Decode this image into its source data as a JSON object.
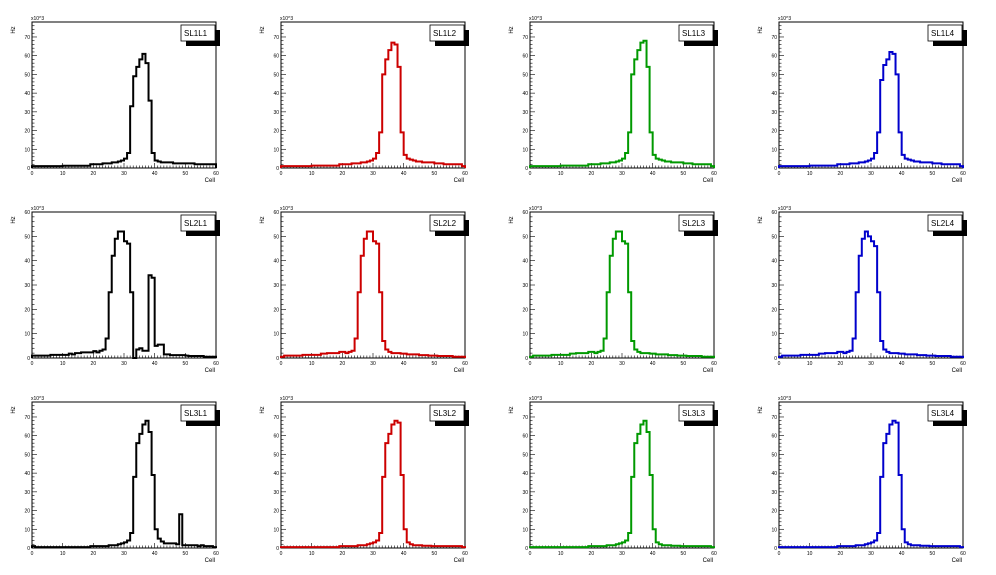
{
  "chart_data": [
    {
      "type": "histogram",
      "title": "SL1L1",
      "color": "#000000",
      "xlabel": "Cell",
      "ylabel": "Hz",
      "yscale": "x10^3",
      "xlim": [
        0,
        60
      ],
      "ylim": [
        0,
        78
      ],
      "yticks": [
        0,
        10,
        20,
        30,
        40,
        50,
        60,
        70
      ],
      "xticks": [
        0,
        10,
        20,
        30,
        40,
        50,
        60
      ],
      "values": [
        1,
        1,
        1,
        1,
        1,
        1,
        1,
        1,
        1,
        1,
        1.2,
        1.2,
        1.2,
        1.2,
        1.2,
        1.2,
        1.2,
        1.2,
        1.2,
        2,
        2,
        2,
        2,
        2.5,
        2.5,
        2.5,
        3,
        3,
        3.5,
        4,
        5,
        8,
        33,
        49,
        54,
        58,
        61,
        56,
        36,
        8,
        4,
        3.5,
        3,
        3,
        3,
        3,
        2.5,
        2.5,
        2.5,
        2.5,
        2.5,
        2.5,
        2.5,
        2,
        2,
        2,
        2,
        2,
        2,
        2
      ]
    },
    {
      "type": "histogram",
      "title": "SL1L2",
      "color": "#cc0000",
      "xlabel": "Cell",
      "ylabel": "Hz",
      "yscale": "x10^3",
      "xlim": [
        0,
        60
      ],
      "ylim": [
        0,
        78
      ],
      "yticks": [
        0,
        10,
        20,
        30,
        40,
        50,
        60,
        70
      ],
      "xticks": [
        0,
        10,
        20,
        30,
        40,
        50,
        60
      ],
      "values": [
        1,
        1,
        1,
        1,
        1,
        1,
        1,
        1,
        1,
        1,
        1.3,
        1.3,
        1.3,
        1.3,
        1.3,
        1.3,
        1.3,
        1.3,
        1.3,
        2,
        2,
        2,
        2,
        2.5,
        2.5,
        2.5,
        3,
        3,
        3.5,
        4,
        5,
        8,
        19,
        50,
        58,
        63,
        67,
        66,
        54,
        19,
        7,
        5,
        4.5,
        4,
        3.5,
        3.5,
        3,
        3,
        3,
        3,
        2.5,
        2.5,
        2.5,
        2,
        2,
        2,
        2,
        2,
        2,
        1
      ]
    },
    {
      "type": "histogram",
      "title": "SL1L3",
      "color": "#009900",
      "xlabel": "Cell",
      "ylabel": "Hz",
      "yscale": "x10^3",
      "xlim": [
        0,
        60
      ],
      "ylim": [
        0,
        78
      ],
      "yticks": [
        0,
        10,
        20,
        30,
        40,
        50,
        60,
        70
      ],
      "xticks": [
        0,
        10,
        20,
        30,
        40,
        50,
        60
      ],
      "values": [
        1,
        1,
        1,
        1,
        1,
        1,
        1,
        1,
        1,
        1,
        1.3,
        1.3,
        1.3,
        1.3,
        1.3,
        1.3,
        1.3,
        1.3,
        1.3,
        2,
        2,
        2,
        2,
        2.5,
        2.5,
        2.5,
        3,
        3,
        3.5,
        4,
        5,
        8,
        19,
        50,
        58,
        63,
        67,
        68,
        54,
        19,
        7,
        5,
        4.5,
        4,
        3.5,
        3.5,
        3,
        3,
        3,
        3,
        2.5,
        2.5,
        2.5,
        2,
        2,
        2,
        2,
        2,
        2,
        1
      ]
    },
    {
      "type": "histogram",
      "title": "SL1L4",
      "color": "#0000cc",
      "xlabel": "Cell",
      "ylabel": "Hz",
      "yscale": "x10^3",
      "xlim": [
        0,
        60
      ],
      "ylim": [
        0,
        78
      ],
      "yticks": [
        0,
        10,
        20,
        30,
        40,
        50,
        60,
        70
      ],
      "xticks": [
        0,
        10,
        20,
        30,
        40,
        50,
        60
      ],
      "values": [
        1,
        1,
        1,
        1,
        1,
        1,
        1,
        1,
        1,
        1,
        1.3,
        1.3,
        1.3,
        1.3,
        1.3,
        1.3,
        1.3,
        1.3,
        1.3,
        2,
        2,
        2,
        2,
        2.5,
        2.5,
        2.5,
        3,
        3,
        3.5,
        4,
        5,
        8,
        19,
        47,
        55,
        58,
        62,
        61,
        50,
        19,
        7,
        5,
        4.5,
        4,
        3.5,
        3.5,
        3,
        3,
        3,
        3,
        2.5,
        2.5,
        2.5,
        2,
        2,
        2,
        2,
        2,
        2,
        1
      ]
    },
    {
      "type": "histogram",
      "title": "SL2L1",
      "color": "#000000",
      "xlabel": "Cell",
      "ylabel": "Hz",
      "yscale": "x10^3",
      "xlim": [
        0,
        60
      ],
      "ylim": [
        0,
        60
      ],
      "yticks": [
        0,
        10,
        20,
        30,
        40,
        50,
        60
      ],
      "xticks": [
        0,
        10,
        20,
        30,
        40,
        50,
        60
      ],
      "values": [
        1,
        1,
        1,
        1,
        1,
        1,
        1.3,
        1.3,
        1.3,
        1.3,
        1.3,
        1.3,
        1.8,
        1.5,
        2,
        2,
        2.3,
        2.3,
        2.3,
        2.3,
        2.8,
        2.3,
        3,
        3.5,
        8,
        27,
        42,
        49,
        52,
        52,
        48,
        47,
        27,
        0,
        3.5,
        4,
        3,
        3,
        34,
        33,
        5,
        5.5,
        5.5,
        1.5,
        1.5,
        1.2,
        1.2,
        1.2,
        1.2,
        1.2,
        1,
        0.8,
        0.8,
        0.8,
        0.8,
        0.8,
        0.5,
        0.5,
        0.5,
        0.5
      ]
    },
    {
      "type": "histogram",
      "title": "SL2L2",
      "color": "#cc0000",
      "xlabel": "Cell",
      "ylabel": "Hz",
      "yscale": "x10^3",
      "xlim": [
        0,
        60
      ],
      "ylim": [
        0,
        60
      ],
      "yticks": [
        0,
        10,
        20,
        30,
        40,
        50,
        60
      ],
      "xticks": [
        0,
        10,
        20,
        30,
        40,
        50,
        60
      ],
      "values": [
        0.5,
        1,
        1,
        1,
        1,
        1,
        1,
        1.3,
        1.3,
        1.3,
        1.3,
        1.3,
        1.3,
        1.8,
        1.8,
        2,
        2,
        2,
        2,
        2.5,
        2.5,
        2,
        2.5,
        3,
        8,
        27,
        42,
        49,
        52,
        52,
        48,
        47,
        27,
        7,
        3.5,
        2.5,
        2,
        2,
        2,
        1.8,
        1.8,
        1.5,
        1.5,
        1.5,
        1.5,
        1.2,
        1.2,
        1.2,
        1,
        1,
        1,
        0.8,
        0.8,
        0.8,
        0.8,
        0.8,
        0.5,
        0.5,
        0.5,
        0.5
      ]
    },
    {
      "type": "histogram",
      "title": "SL2L3",
      "color": "#009900",
      "xlabel": "Cell",
      "ylabel": "Hz",
      "yscale": "x10^3",
      "xlim": [
        0,
        60
      ],
      "ylim": [
        0,
        60
      ],
      "yticks": [
        0,
        10,
        20,
        30,
        40,
        50,
        60
      ],
      "xticks": [
        0,
        10,
        20,
        30,
        40,
        50,
        60
      ],
      "values": [
        0.5,
        1,
        1,
        1,
        1,
        1,
        1,
        1.3,
        1.3,
        1.3,
        1.3,
        1.3,
        1.3,
        1.8,
        1.8,
        2,
        2,
        2,
        2,
        2.5,
        2.5,
        2,
        2.5,
        3,
        8,
        27,
        42,
        49,
        52,
        52,
        48,
        47,
        27,
        7,
        3.5,
        2.5,
        2,
        2,
        2,
        1.8,
        1.8,
        1.5,
        1.5,
        1.5,
        1.5,
        1.2,
        1.2,
        1.2,
        1,
        1,
        1,
        0.8,
        0.8,
        0.8,
        0.8,
        0.8,
        0.5,
        0.5,
        0.5,
        0.5
      ]
    },
    {
      "type": "histogram",
      "title": "SL2L4",
      "color": "#0000cc",
      "xlabel": "Cell",
      "ylabel": "Hz",
      "yscale": "x10^3",
      "xlim": [
        0,
        60
      ],
      "ylim": [
        0,
        60
      ],
      "yticks": [
        0,
        10,
        20,
        30,
        40,
        50,
        60
      ],
      "xticks": [
        0,
        10,
        20,
        30,
        40,
        50,
        60
      ],
      "values": [
        0.5,
        1,
        1,
        1,
        1,
        1,
        1,
        1.3,
        1.3,
        1.3,
        1.3,
        1.3,
        1.3,
        1.8,
        1.8,
        2,
        2,
        2,
        2,
        2.5,
        2.5,
        2,
        2.5,
        3,
        8,
        27,
        42,
        49,
        52,
        50,
        48,
        46,
        27,
        7,
        3.5,
        2.5,
        2,
        2,
        2,
        1.8,
        1.8,
        1.5,
        1.5,
        1.5,
        1.5,
        1.2,
        1.2,
        1.2,
        1,
        1,
        1,
        0.8,
        0.8,
        0.8,
        0.8,
        0.8,
        0.5,
        0.5,
        0.5,
        0.5
      ]
    },
    {
      "type": "histogram",
      "title": "SL3L1",
      "color": "#000000",
      "xlabel": "Cell",
      "ylabel": "Hz",
      "yscale": "x10^3",
      "xlim": [
        0,
        60
      ],
      "ylim": [
        0,
        78
      ],
      "yticks": [
        0,
        10,
        20,
        30,
        40,
        50,
        60,
        70
      ],
      "xticks": [
        0,
        10,
        20,
        30,
        40,
        50,
        60
      ],
      "values": [
        1,
        0.5,
        0.5,
        0.5,
        0.5,
        0.5,
        0.5,
        0.5,
        0.5,
        0.5,
        0.5,
        0.5,
        0.5,
        0.5,
        0.5,
        0.5,
        0.5,
        0.5,
        0.5,
        1,
        1,
        1,
        1,
        1,
        1,
        1.5,
        1.5,
        1.5,
        2,
        2.5,
        3,
        4,
        8,
        38,
        56,
        61,
        66,
        68,
        62,
        39,
        10,
        5,
        3.5,
        2.5,
        2.5,
        2.5,
        2.5,
        2,
        18,
        1.5,
        1.5,
        1.5,
        1.5,
        1.5,
        1,
        1.5,
        1,
        1,
        1,
        0.5
      ]
    },
    {
      "type": "histogram",
      "title": "SL3L2",
      "color": "#cc0000",
      "xlabel": "Cell",
      "ylabel": "Hz",
      "yscale": "x10^3",
      "xlim": [
        0,
        60
      ],
      "ylim": [
        0,
        78
      ],
      "yticks": [
        0,
        10,
        20,
        30,
        40,
        50,
        60,
        70
      ],
      "xticks": [
        0,
        10,
        20,
        30,
        40,
        50,
        60
      ],
      "values": [
        0.5,
        0.5,
        0.5,
        0.5,
        0.5,
        0.5,
        0.5,
        0.5,
        0.5,
        0.5,
        0.5,
        0.5,
        0.5,
        0.5,
        0.5,
        0.5,
        0.5,
        0.5,
        0.5,
        1,
        1,
        1,
        1,
        1,
        1,
        1.5,
        1.5,
        1.5,
        2,
        2.5,
        3,
        4,
        8,
        38,
        56,
        61,
        66,
        68,
        67,
        39,
        10,
        3,
        2,
        1.5,
        1.5,
        1.5,
        1.2,
        1.2,
        1.2,
        1,
        1,
        1,
        1,
        1,
        1,
        1,
        1,
        1,
        1,
        0.5
      ]
    },
    {
      "type": "histogram",
      "title": "SL3L3",
      "color": "#009900",
      "xlabel": "Cell",
      "ylabel": "Hz",
      "yscale": "x10^3",
      "xlim": [
        0,
        60
      ],
      "ylim": [
        0,
        78
      ],
      "yticks": [
        0,
        10,
        20,
        30,
        40,
        50,
        60,
        70
      ],
      "xticks": [
        0,
        10,
        20,
        30,
        40,
        50,
        60
      ],
      "values": [
        0.5,
        0.5,
        0.5,
        0.5,
        0.5,
        0.5,
        0.5,
        0.5,
        0.5,
        0.5,
        0.5,
        0.5,
        0.5,
        0.5,
        0.5,
        0.5,
        0.5,
        0.5,
        0.5,
        1,
        1,
        1,
        1,
        1,
        1,
        1.5,
        1.5,
        1.5,
        2,
        2.5,
        3,
        4,
        8,
        38,
        56,
        61,
        66,
        68,
        62,
        39,
        10,
        3,
        2,
        1.5,
        1.5,
        1.5,
        1.2,
        1.2,
        1.2,
        1,
        1,
        1,
        1,
        1,
        1,
        1,
        1,
        1,
        1,
        0.5
      ]
    },
    {
      "type": "histogram",
      "title": "SL3L4",
      "color": "#0000cc",
      "xlabel": "Cell",
      "ylabel": "Hz",
      "yscale": "x10^3",
      "xlim": [
        0,
        60
      ],
      "ylim": [
        0,
        78
      ],
      "yticks": [
        0,
        10,
        20,
        30,
        40,
        50,
        60,
        70
      ],
      "xticks": [
        0,
        10,
        20,
        30,
        40,
        50,
        60
      ],
      "values": [
        0.5,
        0.5,
        0.5,
        0.5,
        0.5,
        0.5,
        0.5,
        0.5,
        0.5,
        0.5,
        0.5,
        0.5,
        0.5,
        0.5,
        0.5,
        0.5,
        0.5,
        0.5,
        0.5,
        1,
        1,
        1,
        1,
        1,
        1,
        1.5,
        1.5,
        1.5,
        2,
        2.5,
        3,
        4,
        8,
        38,
        56,
        61,
        66,
        68,
        67,
        39,
        10,
        3,
        2,
        1.5,
        1.5,
        1.5,
        1.2,
        1.2,
        1.2,
        1,
        1,
        1,
        1,
        1,
        1,
        1,
        1,
        1,
        1,
        0.5
      ]
    }
  ]
}
